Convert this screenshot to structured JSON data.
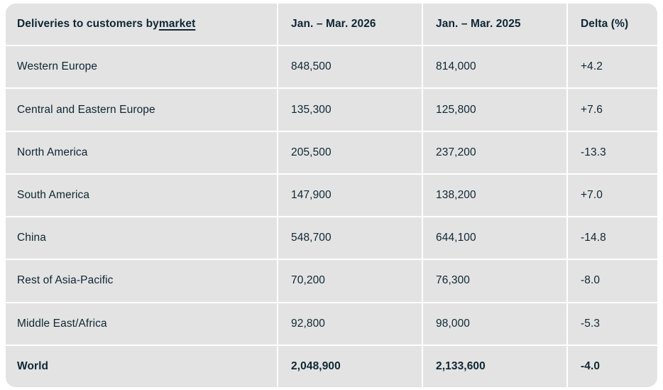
{
  "colors": {
    "page_bg": "#ffffff",
    "cell_bg": "#e3e3e3",
    "text": "#0e2733",
    "gap": "#ffffff"
  },
  "table": {
    "header": {
      "market_prefix": "Deliveries to customers by ",
      "market_link": "market",
      "col_2026": "Jan. – Mar. 2026",
      "col_2025": "Jan. – Mar. 2025",
      "col_delta": "Delta (%)"
    },
    "rows": [
      {
        "market": "Western Europe",
        "y2026": "848,500",
        "y2025": "814,000",
        "delta": "+4.2",
        "is_total": false
      },
      {
        "market": "Central and Eastern Europe",
        "y2026": "135,300",
        "y2025": "125,800",
        "delta": "+7.6",
        "is_total": false
      },
      {
        "market": "North America",
        "y2026": "205,500",
        "y2025": "237,200",
        "delta": "-13.3",
        "is_total": false
      },
      {
        "market": "South America",
        "y2026": "147,900",
        "y2025": "138,200",
        "delta": "+7.0",
        "is_total": false
      },
      {
        "market": "China",
        "y2026": "548,700",
        "y2025": "644,100",
        "delta": "-14.8",
        "is_total": false
      },
      {
        "market": "Rest of Asia-Pacific",
        "y2026": "70,200",
        "y2025": "76,300",
        "delta": "-8.0",
        "is_total": false
      },
      {
        "market": "Middle East/Africa",
        "y2026": "92,800",
        "y2025": "98,000",
        "delta": "-5.3",
        "is_total": false
      },
      {
        "market": "World",
        "y2026": "2,048,900",
        "y2025": "2,133,600",
        "delta": "-4.0",
        "is_total": true
      }
    ]
  },
  "chart_data": {
    "type": "table",
    "title": "Deliveries to customers by market",
    "columns": [
      "Deliveries to customers by market",
      "Jan. – Mar. 2026",
      "Jan. – Mar. 2025",
      "Delta (%)"
    ],
    "categories": [
      "Western Europe",
      "Central and Eastern Europe",
      "North America",
      "South America",
      "China",
      "Rest of Asia-Pacific",
      "Middle East/Africa",
      "World"
    ],
    "series": [
      {
        "name": "Jan. – Mar. 2026",
        "values": [
          848500,
          135300,
          205500,
          147900,
          548700,
          70200,
          92800,
          2048900
        ]
      },
      {
        "name": "Jan. – Mar. 2025",
        "values": [
          814000,
          125800,
          237200,
          138200,
          644100,
          76300,
          98000,
          2133600
        ]
      },
      {
        "name": "Delta (%)",
        "values": [
          4.2,
          7.6,
          -13.3,
          7.0,
          -14.8,
          -8.0,
          -5.3,
          -4.0
        ]
      }
    ]
  }
}
